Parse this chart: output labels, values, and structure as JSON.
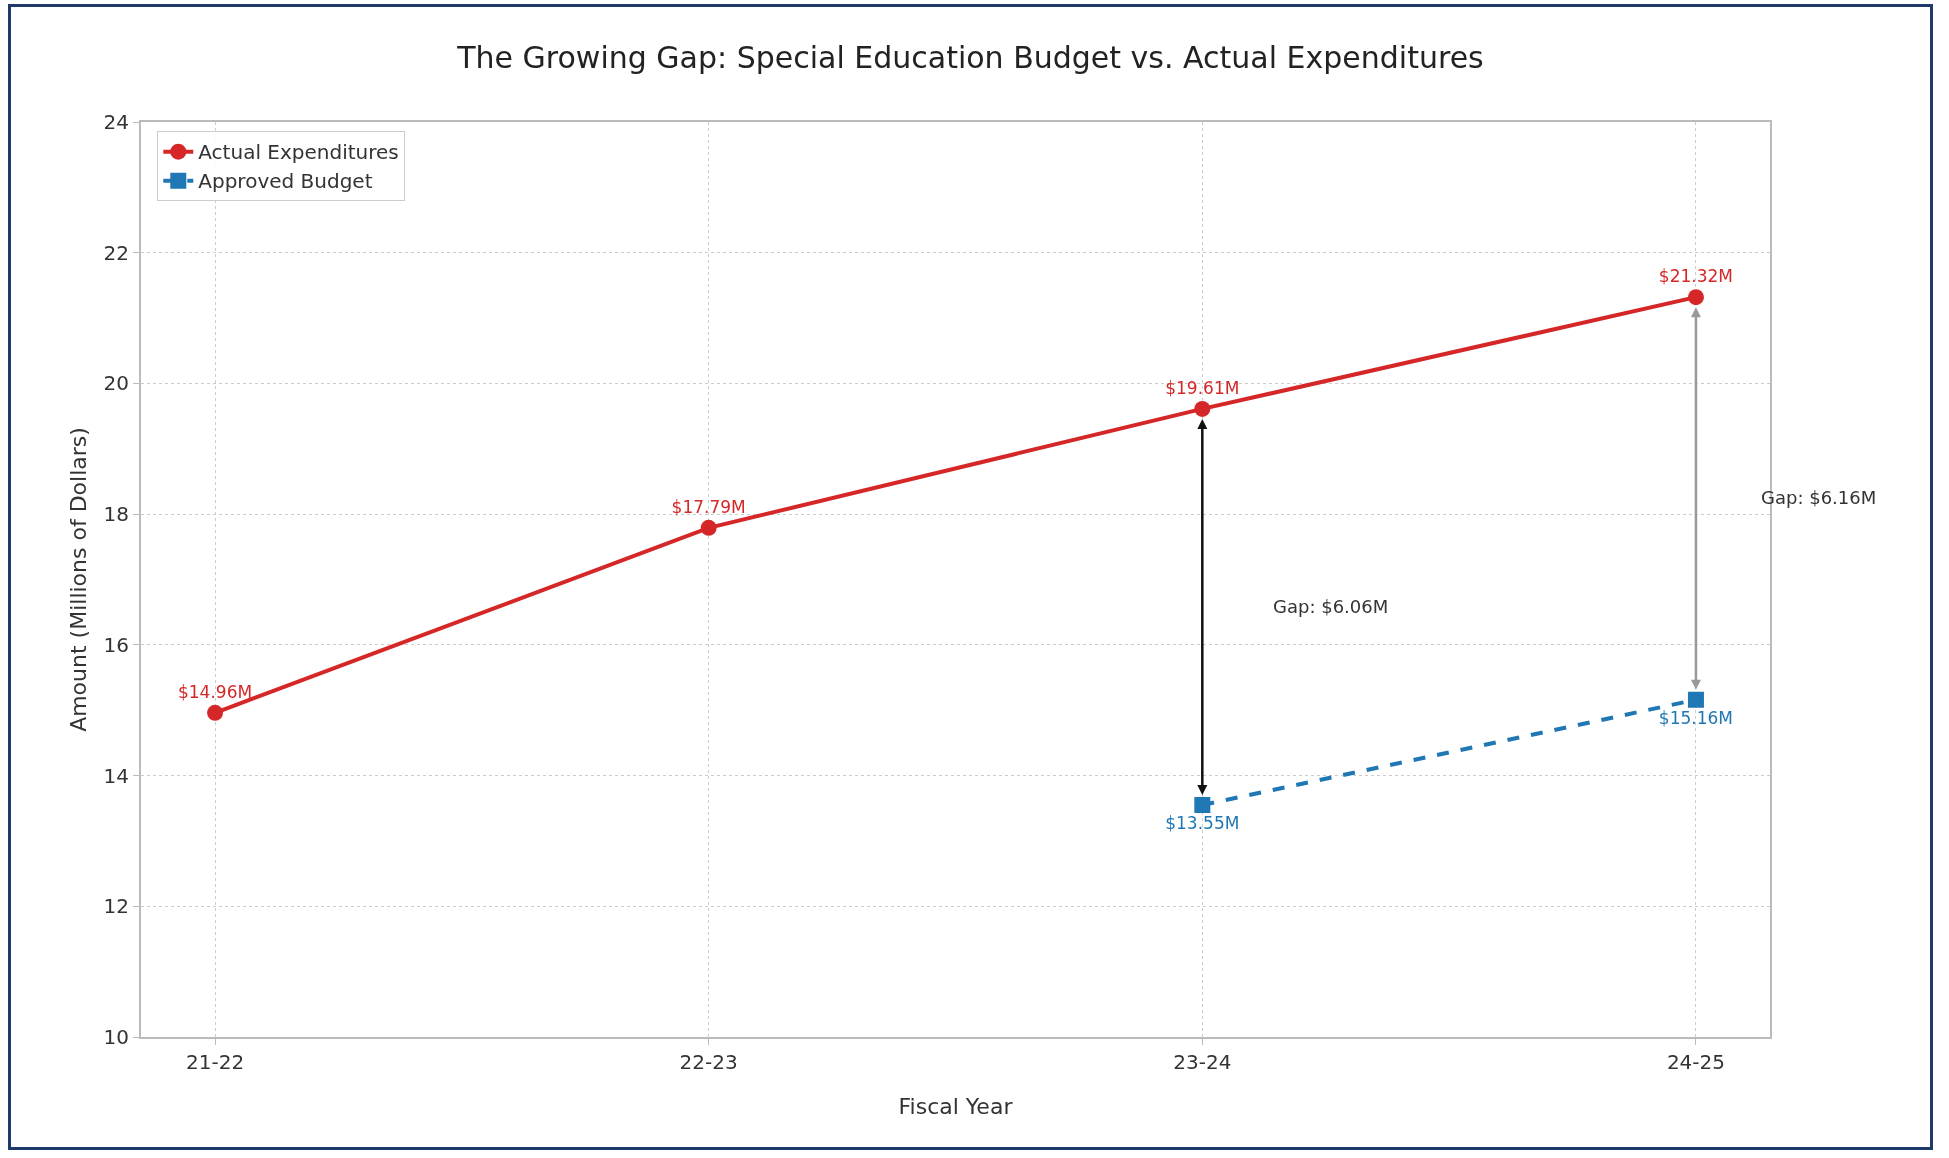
{
  "chart_data": {
    "type": "line",
    "title": "The Growing Gap: Special Education Budget vs. Actual Expenditures",
    "xlabel": "Fiscal Year",
    "ylabel": "Amount (Millions of Dollars)",
    "categories": [
      "21-22",
      "22-23",
      "23-24",
      "24-25"
    ],
    "series": [
      {
        "name": "Actual Expenditures",
        "color": "#d62728",
        "values": [
          14.96,
          17.79,
          19.61,
          21.32
        ],
        "value_labels": [
          "$14.96M",
          "$17.79M",
          "$19.61M",
          "$21.32M"
        ],
        "marker": "circle",
        "line_style": "solid"
      },
      {
        "name": "Approved Budget",
        "color": "#1f77b4",
        "values": [
          null,
          null,
          13.55,
          15.16
        ],
        "value_labels": [
          null,
          null,
          "$13.55M",
          "$15.16M"
        ],
        "marker": "square",
        "line_style": "dashed"
      }
    ],
    "annotations": [
      "Gap: $6.06M",
      "Gap: $6.16M"
    ],
    "ylim": [
      10,
      24
    ],
    "yticks": [
      10,
      12,
      14,
      16,
      18,
      20,
      22,
      24
    ],
    "grid": true,
    "legend": "top left"
  }
}
